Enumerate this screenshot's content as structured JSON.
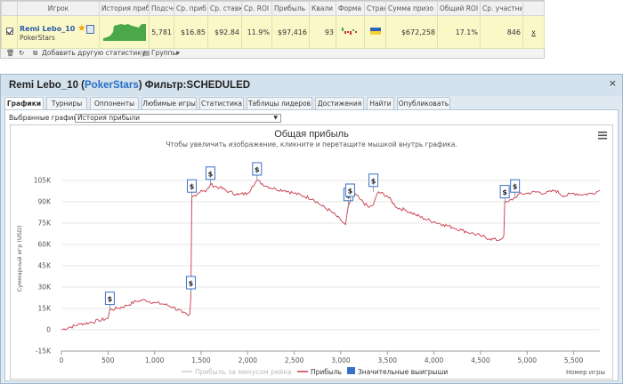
{
  "stats": {
    "headers": [
      "Игрок",
      "История приб",
      "Подсчет",
      "Ср. приб",
      "Ср. ставк",
      "Ср. ROI",
      "Прибыль",
      "Квали",
      "Форма",
      "Стран",
      "Сумма призо",
      "Общий ROI",
      "Ср. участни"
    ],
    "row": {
      "player_name": "Remi Lebo_10",
      "site": "PokerStars",
      "count": "5,781",
      "avg_profit": "$16.85",
      "avg_stake": "$92.84",
      "avg_roi": "11.9%",
      "profit": "$97,416",
      "ability": "93",
      "prize_sum": "$672,258",
      "total_roi": "17.1%",
      "avg_entrants": "846",
      "remove": "x"
    },
    "toolbar": {
      "add_label": "Добавить другую статистику",
      "groups_label": "Группы"
    }
  },
  "window": {
    "player": "Remi Lebo_10",
    "site": "PokerStars",
    "filter_label": "Фильтр:",
    "filter_value": "SCHEDULED",
    "close": "×"
  },
  "tabs": [
    "Графики",
    "Турниры",
    "Оппоненты",
    "Любимые игры",
    "Статистика",
    "Таблицы лидеров",
    "Достижения",
    "Найти",
    "Опубликовать"
  ],
  "selector": {
    "label": "Выбранные графики:",
    "value": "История прибыли"
  },
  "colors": {
    "profit_line": "#c8384a",
    "rake_line": "#bbbbbb",
    "big_win": "#3a70c8"
  },
  "chart_data": {
    "type": "line",
    "title": "Общая прибыль",
    "subtitle": "Чтобы увеличить изображение, кликните и перетащите мышкой внутрь графика.",
    "xlabel": "Номер игры",
    "ylabel": "Суммарный игр (USD)",
    "xlim": [
      0,
      5781
    ],
    "ylim": [
      -15000,
      105000
    ],
    "x_ticks": [
      "0",
      "500",
      "1,000",
      "1,500",
      "2,000",
      "2,500",
      "3,000",
      "3,500",
      "4,000",
      "4,500",
      "5,000",
      "5,500"
    ],
    "y_ticks": [
      "-15K",
      "0",
      "15K",
      "30K",
      "45K",
      "60K",
      "75K",
      "90K",
      "105K"
    ],
    "legend": [
      "Прибыль за минусом рейка",
      "Прибыль",
      "Значительные выигрыши"
    ],
    "series": [
      {
        "name": "Прибыль",
        "x": [
          0,
          100,
          200,
          300,
          400,
          500,
          520,
          600,
          700,
          800,
          900,
          1000,
          1100,
          1200,
          1300,
          1360,
          1380,
          1390,
          1400,
          1500,
          1550,
          1600,
          1700,
          1800,
          1900,
          2000,
          2050,
          2100,
          2200,
          2300,
          2400,
          2500,
          2600,
          2700,
          2800,
          2900,
          3000,
          3050,
          3080,
          3100,
          3150,
          3200,
          3300,
          3350,
          3400,
          3500,
          3600,
          3700,
          3800,
          3900,
          4000,
          4100,
          4200,
          4300,
          4400,
          4500,
          4600,
          4700,
          4750,
          4760,
          4800,
          4870,
          4900,
          5000,
          5100,
          5200,
          5300,
          5400,
          5500,
          5600,
          5700,
          5781
        ],
        "y": [
          0,
          2000,
          4000,
          5000,
          6500,
          8000,
          14000,
          15000,
          17000,
          20000,
          21000,
          19000,
          18000,
          16000,
          12000,
          10000,
          11000,
          25000,
          93000,
          98000,
          97000,
          102000,
          100000,
          97000,
          95000,
          96000,
          101000,
          105000,
          101000,
          99000,
          98000,
          96000,
          94000,
          92000,
          87000,
          83000,
          77000,
          74000,
          87000,
          90000,
          96000,
          92000,
          86000,
          88000,
          97000,
          94000,
          86000,
          84000,
          81000,
          78000,
          76000,
          74000,
          72000,
          70000,
          68000,
          66000,
          64000,
          63000,
          66000,
          89000,
          90000,
          93000,
          95000,
          96000,
          97000,
          96000,
          98000,
          94000,
          96000,
          95000,
          96000,
          98000
        ]
      },
      {
        "name": "Значительные выигрыши",
        "x": [
          520,
          1390,
          1400,
          1600,
          2100,
          3080,
          3100,
          3350,
          4760,
          4870
        ],
        "y": [
          14000,
          25000,
          93000,
          102000,
          105000,
          87000,
          90000,
          97000,
          89000,
          93000
        ]
      }
    ]
  }
}
